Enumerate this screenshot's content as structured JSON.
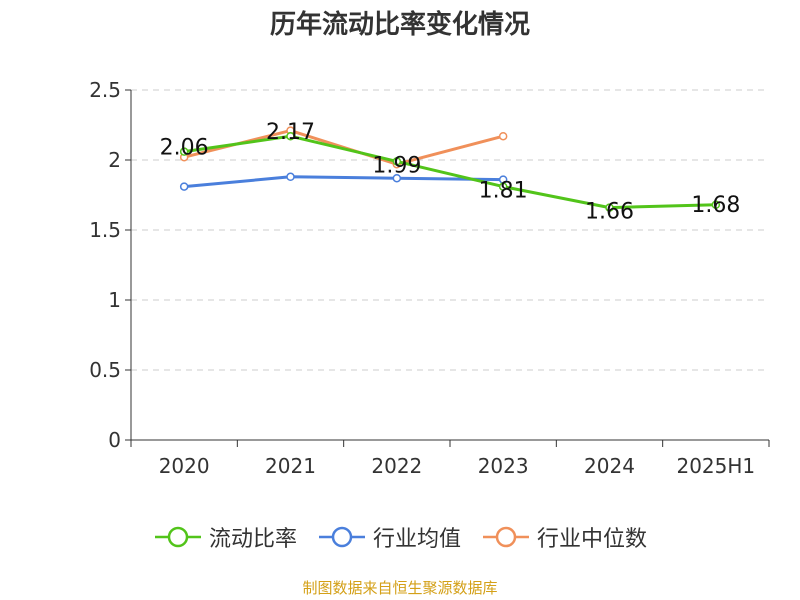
{
  "chart_data": {
    "type": "line",
    "title": "历年流动比率变化情况",
    "categories": [
      "2020",
      "2021",
      "2022",
      "2023",
      "2024",
      "2025H1"
    ],
    "ylim": [
      0,
      2.5
    ],
    "yticks": [
      "0",
      "0.5",
      "1",
      "1.5",
      "2",
      "2.5"
    ],
    "grid": true,
    "legend_position": "bottom",
    "series": [
      {
        "name": "流动比率",
        "color": "#52c41a",
        "values": [
          2.06,
          2.17,
          1.99,
          1.81,
          1.66,
          1.68
        ],
        "labels": [
          "2.06",
          "2.17",
          "1.99",
          "1.81",
          "1.66",
          "1.68"
        ]
      },
      {
        "name": "行业均值",
        "color": "#4a7fdc",
        "values": [
          1.81,
          1.88,
          1.87,
          1.86,
          null,
          null
        ]
      },
      {
        "name": "行业中位数",
        "color": "#f0905a",
        "values": [
          2.02,
          2.21,
          1.97,
          2.17,
          null,
          null
        ]
      }
    ]
  },
  "footer": {
    "source": "制图数据来自恒生聚源数据库"
  }
}
